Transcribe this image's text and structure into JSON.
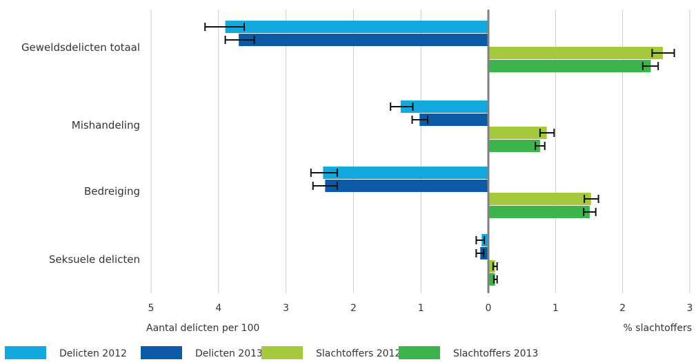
{
  "chart_data": {
    "type": "bar",
    "orientation": "horizontal-diverging",
    "categories": [
      "Geweldsdelicten totaal",
      "Mishandeling",
      "Bedreiging",
      "Seksuele delicten"
    ],
    "left_axis": {
      "label": "Aantal delicten per 100",
      "ticks": [
        "5",
        "4",
        "3",
        "2",
        "1",
        "0"
      ],
      "range": [
        0,
        5
      ]
    },
    "right_axis": {
      "label": "% slachtoffers",
      "ticks": [
        "1",
        "2",
        "3"
      ],
      "range": [
        0,
        3
      ]
    },
    "series": [
      {
        "name": "Delicten 2012",
        "side": "left",
        "color": "#11a9dd",
        "values": [
          3.9,
          1.3,
          2.45,
          0.1
        ],
        "err_low": [
          4.2,
          1.45,
          2.63,
          0.18
        ],
        "err_high": [
          3.62,
          1.12,
          2.24,
          0.06
        ]
      },
      {
        "name": "Delicten 2013",
        "side": "left",
        "color": "#0a5aa5",
        "values": [
          3.7,
          1.02,
          2.42,
          0.12
        ],
        "err_low": [
          3.9,
          1.13,
          2.6,
          0.18
        ],
        "err_high": [
          3.47,
          0.9,
          2.24,
          0.07
        ]
      },
      {
        "name": "Slachtoffers 2012",
        "side": "right",
        "color": "#a4c93c",
        "values": [
          2.6,
          0.87,
          1.53,
          0.1
        ],
        "err_low": [
          2.44,
          0.77,
          1.43,
          0.07
        ],
        "err_high": [
          2.77,
          0.98,
          1.64,
          0.13
        ]
      },
      {
        "name": "Slachtoffers 2013",
        "side": "right",
        "color": "#3cb44b",
        "values": [
          2.42,
          0.77,
          1.51,
          0.1
        ],
        "err_low": [
          2.3,
          0.7,
          1.42,
          0.08
        ],
        "err_high": [
          2.53,
          0.84,
          1.6,
          0.13
        ]
      }
    ],
    "grid": true,
    "legend": "bottom"
  }
}
